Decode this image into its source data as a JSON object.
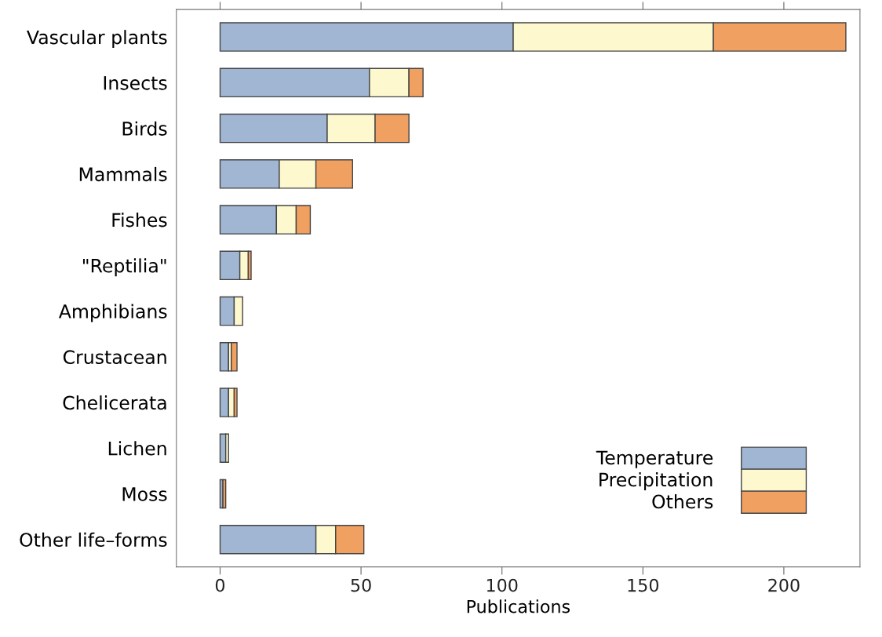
{
  "chart_data": {
    "type": "bar",
    "orientation": "horizontal",
    "stacked": true,
    "xlabel": "Publications",
    "categories": [
      "Vascular plants",
      "Insects",
      "Birds",
      "Mammals",
      "Fishes",
      "\"Reptilia\"",
      "Amphibians",
      "Crustacean",
      "Chelicerata",
      "Lichen",
      "Moss",
      "Other life–forms"
    ],
    "series": [
      {
        "name": "Temperature",
        "color": "#a0b6d2",
        "values": [
          104,
          53,
          38,
          21,
          20,
          7,
          5,
          3,
          3,
          2,
          1,
          34
        ]
      },
      {
        "name": "Precipitation",
        "color": "#fef8ce",
        "values": [
          71,
          14,
          17,
          13,
          7,
          3,
          3,
          1,
          2,
          1,
          0,
          7
        ]
      },
      {
        "name": "Others",
        "color": "#f0a060",
        "values": [
          47,
          5,
          12,
          13,
          5,
          1,
          0,
          2,
          1,
          0,
          1,
          10
        ]
      }
    ],
    "xlim": [
      -15.5,
      227
    ],
    "xticks": [
      0,
      50,
      100,
      150,
      200
    ],
    "grid": false,
    "legend": "bottom right"
  }
}
